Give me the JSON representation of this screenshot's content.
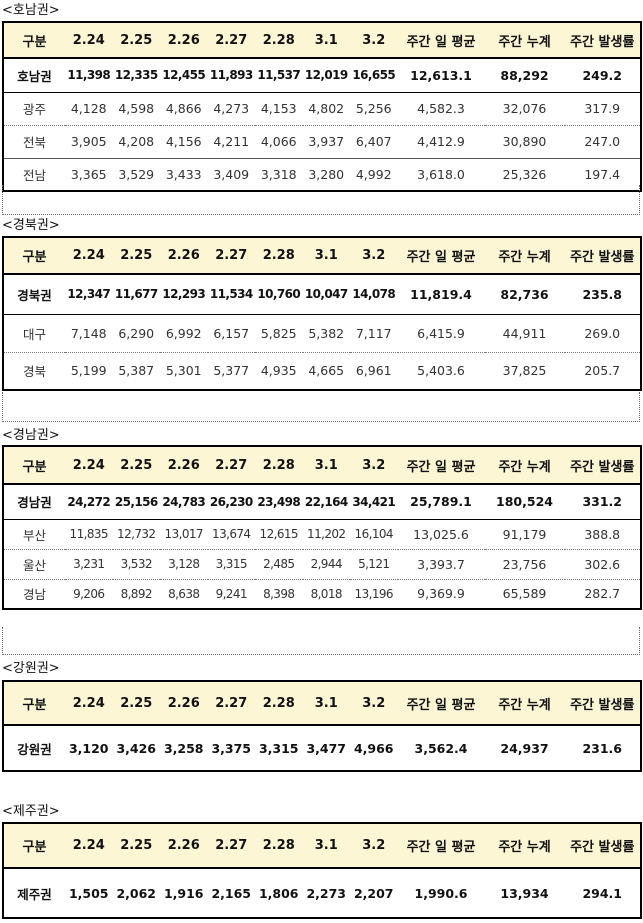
{
  "headers": [
    "구분",
    "2.24",
    "2.25",
    "2.26",
    "2.27",
    "2.28",
    "3.1",
    "3.2",
    "주간 일 평균",
    "주간 누계",
    "주간 발생률"
  ],
  "sections": [
    {
      "label": "<호남권>",
      "total": [
        "호남권",
        "11,398",
        "12,335",
        "12,455",
        "11,893",
        "11,537",
        "12,019",
        "16,655",
        "12,613.1",
        "88,292",
        "249.2"
      ],
      "rows": [
        [
          "광주",
          "4,128",
          "4,598",
          "4,866",
          "4,273",
          "4,153",
          "4,802",
          "5,256",
          "4,582.3",
          "32,076",
          "317.9"
        ],
        [
          "전북",
          "3,905",
          "4,208",
          "4,156",
          "4,211",
          "4,066",
          "3,937",
          "6,407",
          "4,412.9",
          "30,890",
          "247.0"
        ],
        [
          "전남",
          "3,365",
          "3,529",
          "3,433",
          "3,409",
          "3,318",
          "3,280",
          "4,992",
          "3,618.0",
          "25,326",
          "197.4"
        ]
      ]
    },
    {
      "label": "<경북권>",
      "total": [
        "경북권",
        "12,347",
        "11,677",
        "12,293",
        "11,534",
        "10,760",
        "10,047",
        "14,078",
        "11,819.4",
        "82,736",
        "235.8"
      ],
      "rows": [
        [
          "대구",
          "7,148",
          "6,290",
          "6,992",
          "6,157",
          "5,825",
          "5,382",
          "7,117",
          "6,415.9",
          "44,911",
          "269.0"
        ],
        [
          "경북",
          "5,199",
          "5,387",
          "5,301",
          "5,377",
          "4,935",
          "4,665",
          "6,961",
          "5,403.6",
          "37,825",
          "205.7"
        ]
      ]
    },
    {
      "label": "<경남권>",
      "total": [
        "경남권",
        "24,272",
        "25,156",
        "24,783",
        "26,230",
        "23,498",
        "22,164",
        "34,421",
        "25,789.1",
        "180,524",
        "331.2"
      ],
      "rows": [
        [
          "부산",
          "11,835",
          "12,732",
          "13,017",
          "13,674",
          "12,615",
          "11,202",
          "16,104",
          "13,025.6",
          "91,179",
          "388.8"
        ],
        [
          "울산",
          "3,231",
          "3,532",
          "3,128",
          "3,315",
          "2,485",
          "2,944",
          "5,121",
          "3,393.7",
          "23,756",
          "302.6"
        ],
        [
          "경남",
          "9,206",
          "8,892",
          "8,638",
          "9,241",
          "8,398",
          "8,018",
          "13,196",
          "9,369.9",
          "65,589",
          "282.7"
        ]
      ]
    },
    {
      "label": "<강원권>",
      "total": [
        "강원권",
        "3,120",
        "3,426",
        "3,258",
        "3,375",
        "3,315",
        "3,477",
        "4,966",
        "3,562.4",
        "24,937",
        "231.6"
      ],
      "rows": []
    },
    {
      "label": "<제주권>",
      "total": [
        "제주권",
        "1,505",
        "2,062",
        "1,916",
        "2,165",
        "1,806",
        "2,273",
        "2,207",
        "1,990.6",
        "13,934",
        "294.1"
      ],
      "rows": []
    }
  ]
}
